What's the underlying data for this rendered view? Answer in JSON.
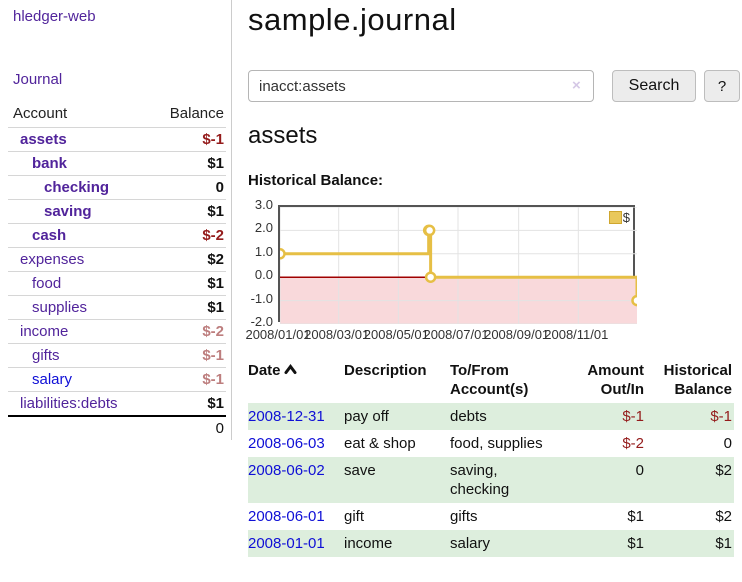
{
  "colors": {
    "link_purple": "#51249b",
    "link_blue": "#0f0fd6",
    "negative_dark": "#941b1b",
    "negative_muted": "#bd7e7e",
    "row_green": "#ddeedd"
  },
  "sidebar": {
    "app_title": "hledger-web",
    "journal_link": "Journal",
    "accounts_table": {
      "headers": {
        "account": "Account",
        "balance": "Balance"
      },
      "rows": [
        {
          "name": "assets",
          "balance": "$-1",
          "indent": 1,
          "bold": true,
          "name_color": "purple",
          "balance_style": "neg"
        },
        {
          "name": "bank",
          "balance": "$1",
          "indent": 2,
          "bold": true,
          "name_color": "purple",
          "balance_style": "pos"
        },
        {
          "name": "checking",
          "balance": "0",
          "indent": 3,
          "bold": true,
          "name_color": "purple",
          "balance_style": "pos"
        },
        {
          "name": "saving",
          "balance": "$1",
          "indent": 3,
          "bold": true,
          "name_color": "purple",
          "balance_style": "pos"
        },
        {
          "name": "cash",
          "balance": "$-2",
          "indent": 2,
          "bold": true,
          "name_color": "purple",
          "balance_style": "neg"
        },
        {
          "name": "expenses",
          "balance": "$2",
          "indent": 1,
          "bold": false,
          "name_color": "purple",
          "balance_style": "pos"
        },
        {
          "name": "food",
          "balance": "$1",
          "indent": 2,
          "bold": false,
          "name_color": "purple",
          "balance_style": "pos"
        },
        {
          "name": "supplies",
          "balance": "$1",
          "indent": 2,
          "bold": false,
          "name_color": "purple",
          "balance_style": "pos"
        },
        {
          "name": "income",
          "balance": "$-2",
          "indent": 1,
          "bold": false,
          "name_color": "purple",
          "balance_style": "neg-muted"
        },
        {
          "name": "gifts",
          "balance": "$-1",
          "indent": 2,
          "bold": false,
          "name_color": "purple",
          "balance_style": "neg-muted"
        },
        {
          "name": "salary",
          "balance": "$-1",
          "indent": 2,
          "bold": false,
          "name_color": "blue",
          "balance_style": "neg-muted"
        },
        {
          "name": "liabilities:debts",
          "balance": "$1",
          "indent": 1,
          "bold": false,
          "name_color": "purple",
          "balance_style": "pos"
        }
      ],
      "total": "0"
    }
  },
  "header": {
    "title": "sample.journal"
  },
  "search": {
    "value": "inacct:assets",
    "clear_icon": "×",
    "search_label": "Search",
    "help_label": "?"
  },
  "account_page": {
    "heading": "assets",
    "chart_label": "Historical Balance:"
  },
  "chart_data": {
    "type": "line",
    "step": true,
    "series": [
      {
        "name": "$",
        "x": [
          "2008-01-01",
          "2008-06-01",
          "2008-06-02",
          "2008-06-03",
          "2008-12-31"
        ],
        "values": [
          1,
          2,
          2,
          0,
          -1
        ]
      }
    ],
    "xlim": [
      "2008-01-01",
      "2008-12-31"
    ],
    "ylim": [
      -2,
      3
    ],
    "y_ticks": [
      3,
      2,
      1,
      0,
      -1,
      -2
    ],
    "y_tick_labels": [
      "3.0",
      "2.0",
      "1.0",
      "0.0",
      "-1.0",
      "-2.0"
    ],
    "x_ticks": [
      "2008-01-01",
      "2008-03-01",
      "2008-05-01",
      "2008-07-01",
      "2008-09-01",
      "2008-11-01"
    ],
    "x_tick_labels": [
      "2008/01/01",
      "2008/03/01",
      "2008/05/01",
      "2008/07/01",
      "2008/09/01",
      "2008/11/01"
    ],
    "legend": {
      "label": "$",
      "position": "top-right"
    },
    "grid": true,
    "colors": {
      "line": "#e6bf45",
      "marker_fill": "#ffffff",
      "negative_fill": "#f9d9db",
      "zero_line": "#a00000",
      "grid": "#e3e3e3",
      "border": "#545454"
    }
  },
  "register": {
    "headers": [
      "Date",
      "Description",
      "To/From Account(s)",
      "Amount Out/In",
      "Historical Balance"
    ],
    "sort": {
      "column": "Date",
      "direction": "ascending"
    },
    "rows": [
      {
        "date": "2008-12-31",
        "description": "pay off",
        "accounts": "debts",
        "amount": "$-1",
        "balance": "$-1",
        "amount_neg": true,
        "balance_neg": true
      },
      {
        "date": "2008-06-03",
        "description": "eat & shop",
        "accounts": "food, supplies",
        "amount": "$-2",
        "balance": "0",
        "amount_neg": true,
        "balance_neg": false
      },
      {
        "date": "2008-06-02",
        "description": "save",
        "accounts": "saving, checking",
        "amount": "0",
        "balance": "$2",
        "amount_neg": false,
        "balance_neg": false
      },
      {
        "date": "2008-06-01",
        "description": "gift",
        "accounts": "gifts",
        "amount": "$1",
        "balance": "$2",
        "amount_neg": false,
        "balance_neg": false
      },
      {
        "date": "2008-01-01",
        "description": "income",
        "accounts": "salary",
        "amount": "$1",
        "balance": "$1",
        "amount_neg": false,
        "balance_neg": false
      }
    ]
  }
}
